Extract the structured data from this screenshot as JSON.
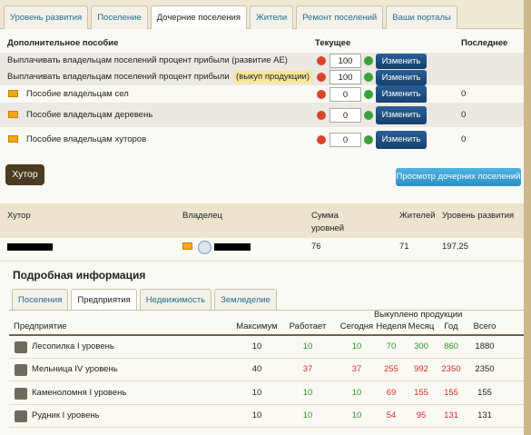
{
  "tabs": [
    "Уровень развития",
    "Поселение",
    "Дочерние поселения",
    "Жители",
    "Ремонт поселений",
    "Ваши порталы"
  ],
  "active_tab": 2,
  "allowance": {
    "headers": [
      "Дополнительное пособие",
      "Текущее",
      "Последнее"
    ],
    "button": "Изменить",
    "rows": [
      {
        "label": "Выплачивать владельцам поселений процент прибыли (развитие АЕ)",
        "current": 100
      },
      {
        "label": "Выплачивать владельцам поселений процент прибыли",
        "highlight": "(выкуп продукции)",
        "current": 100
      },
      {
        "label": "Пособие владельцам сел",
        "current": 0,
        "last": 0
      },
      {
        "label": "Пособие владельцам деревень",
        "current": 0,
        "last": 0
      },
      {
        "label": "Пособие владельцам хуторов",
        "current": 0,
        "last": 0
      }
    ]
  },
  "settlement": {
    "badge": "Хутор",
    "view_button": "Просмотр дочерних поселений",
    "headers": [
      "Хутор",
      "Владелец",
      "Сумма уровней домов",
      "Жителей",
      "Уровень развития"
    ],
    "row": {
      "houses": 76,
      "residents": 71,
      "level": "197,25"
    }
  },
  "details": {
    "title": "Подробная информация",
    "tabs": [
      "Поселения",
      "Предприятия",
      "Недвижимость",
      "Земледелие"
    ],
    "active_tab": 1,
    "group_header": "Выкуплено продукции",
    "headers": [
      "Предприятие",
      "Максимум",
      "Работает",
      "Сегодня",
      "Неделя",
      "Месяц",
      "Год",
      "Всего"
    ],
    "rows": [
      {
        "name": "Лесопилка I уровень",
        "values": [
          10,
          10,
          10,
          70,
          300,
          860,
          1880
        ],
        "colors": [
          "#222222",
          "#2a9a2a",
          "#2a9a2a",
          "#2a9a2a",
          "#2a9a2a",
          "#2a9a2a",
          "#222222"
        ]
      },
      {
        "name": "Мельница IV уровень",
        "values": [
          40,
          37,
          37,
          255,
          992,
          2350,
          2350
        ],
        "colors": [
          "#222222",
          "#d0312d",
          "#d0312d",
          "#d0312d",
          "#d0312d",
          "#d0312d",
          "#222222"
        ]
      },
      {
        "name": "Каменоломня I уровень",
        "values": [
          10,
          10,
          10,
          69,
          155,
          155,
          155
        ],
        "colors": [
          "#222222",
          "#2a9a2a",
          "#2a9a2a",
          "#d0312d",
          "#d0312d",
          "#d0312d",
          "#222222"
        ]
      },
      {
        "name": "Рудник I уровень",
        "values": [
          10,
          10,
          10,
          54,
          95,
          131,
          131
        ],
        "colors": [
          "#222222",
          "#2a9a2a",
          "#2a9a2a",
          "#d0312d",
          "#d0312d",
          "#d0312d",
          "#222222"
        ]
      }
    ]
  }
}
